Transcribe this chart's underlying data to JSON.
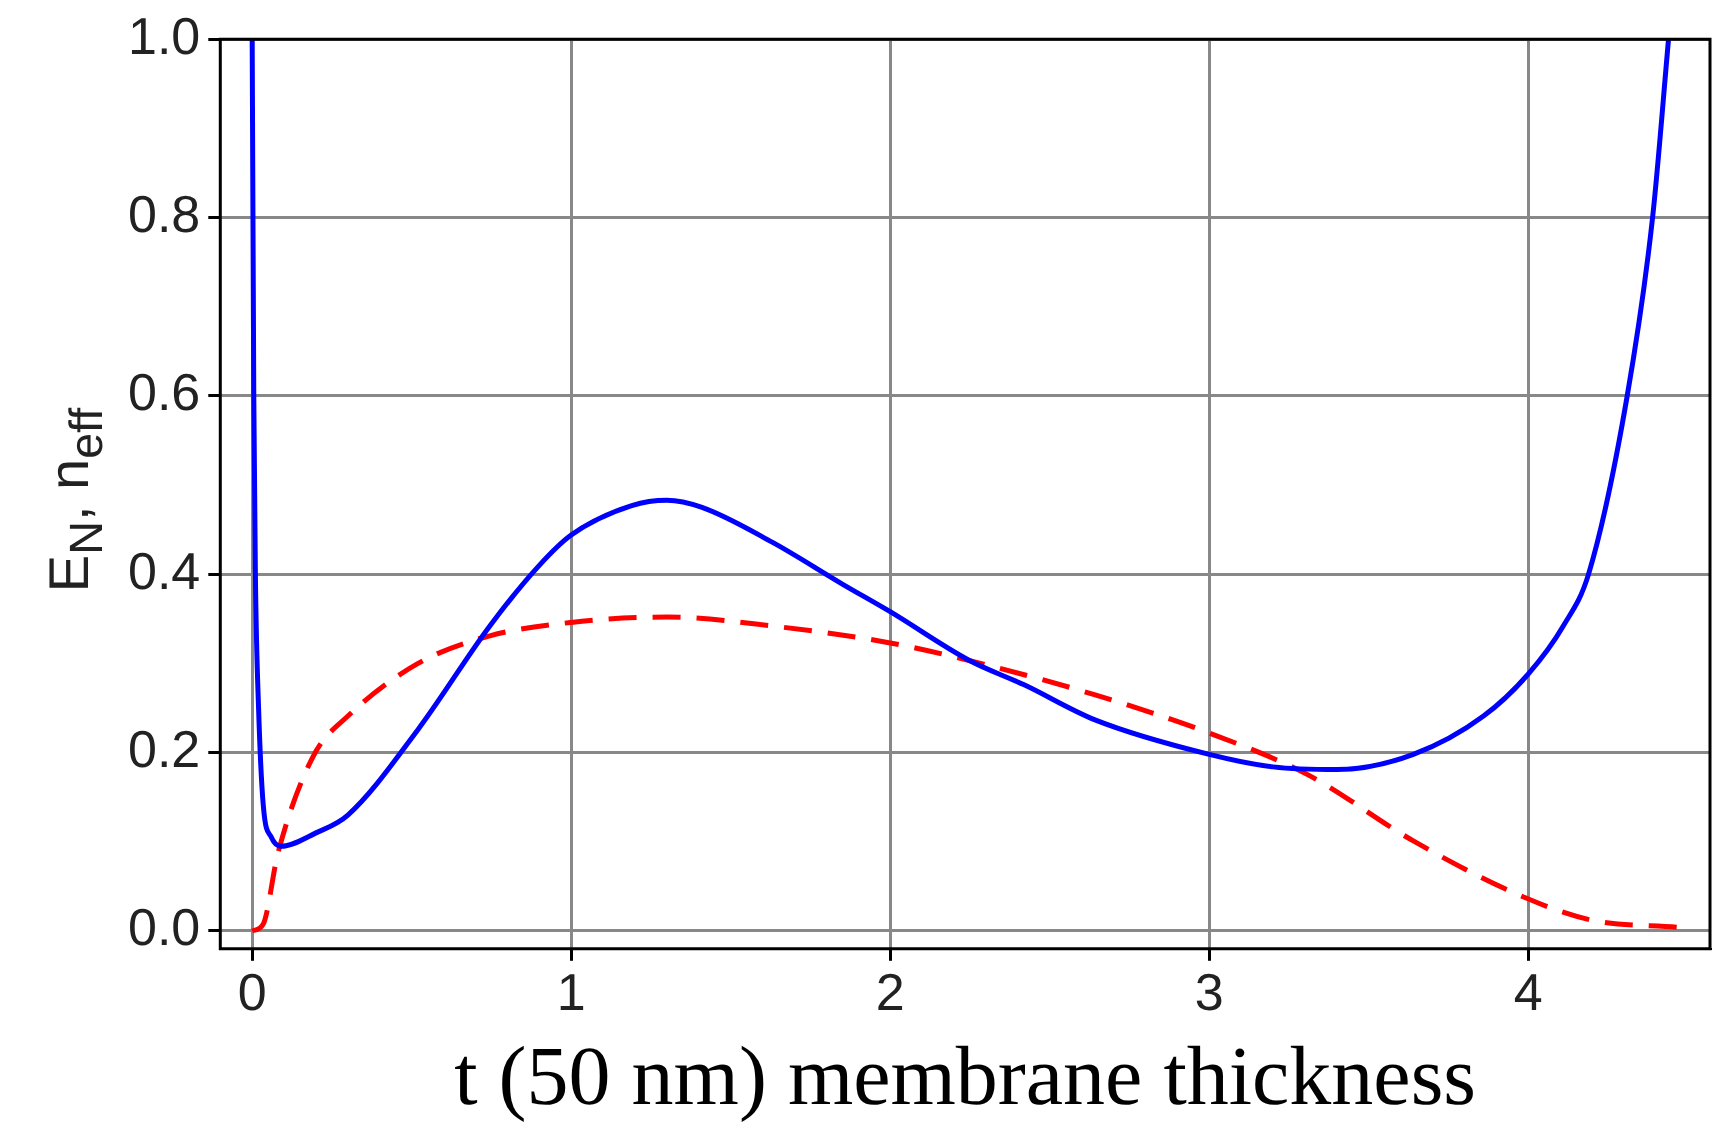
{
  "chart_data": {
    "type": "line",
    "xlabel": "t (50 nm) membrane thickness",
    "ylabel": "E$_{N}$, n$_{eff}$",
    "xlim": [
      -0.1,
      4.57
    ],
    "xticks": [
      0,
      1,
      2,
      3,
      4
    ],
    "ylim": [
      -0.02,
      1.0
    ],
    "yticks": [
      {
        "value": 0,
        "label": "0.0"
      },
      {
        "value": 0.2,
        "label": "0.2"
      },
      {
        "value": 0.4,
        "label": "0.4"
      },
      {
        "value": 0.6,
        "label": "0.6"
      },
      {
        "value": 0.8,
        "label": "0.8"
      },
      {
        "value": 1.0,
        "label": "1.0"
      }
    ],
    "grid": true,
    "legend": false,
    "marker": "none",
    "series": [
      {
        "color": "#0000ff",
        "line_style": "solid",
        "x": [
          0,
          0.005,
          0.01,
          0.02,
          0.035,
          0.06,
          0.09,
          0.2,
          0.3,
          0.52,
          0.745,
          0.9,
          1.0,
          1.19,
          1.3,
          1.41,
          1.63,
          1.85,
          2.0,
          2.25,
          2.42,
          2.64,
          3.0,
          3.2,
          3.4,
          3.64,
          3.86,
          4.0,
          4.11,
          4.19,
          4.31,
          4.39,
          4.44
        ],
        "values": [
          1.0,
          0.6,
          0.4,
          0.25,
          0.14,
          0.105,
          0.095,
          0.11,
          0.13,
          0.226,
          0.342,
          0.41,
          0.444,
          0.477,
          0.483,
          0.475,
          0.436,
          0.389,
          0.358,
          0.303,
          0.276,
          0.237,
          0.198,
          0.184,
          0.181,
          0.198,
          0.241,
          0.288,
          0.342,
          0.401,
          0.599,
          0.8,
          1.0
        ]
      },
      {
        "color": "#ff0000",
        "line_style": "dashed",
        "x": [
          0,
          0.035,
          0.08,
          0.19,
          0.3,
          0.52,
          0.745,
          1.0,
          1.3,
          1.63,
          2.0,
          2.25,
          2.64,
          3.0,
          3.31,
          3.64,
          3.98,
          4.2,
          4.47
        ],
        "values": [
          0,
          0.008,
          0.086,
          0.195,
          0.241,
          0.3,
          0.331,
          0.346,
          0.352,
          0.342,
          0.323,
          0.303,
          0.265,
          0.222,
          0.175,
          0.101,
          0.039,
          0.012,
          0.004
        ]
      }
    ]
  }
}
